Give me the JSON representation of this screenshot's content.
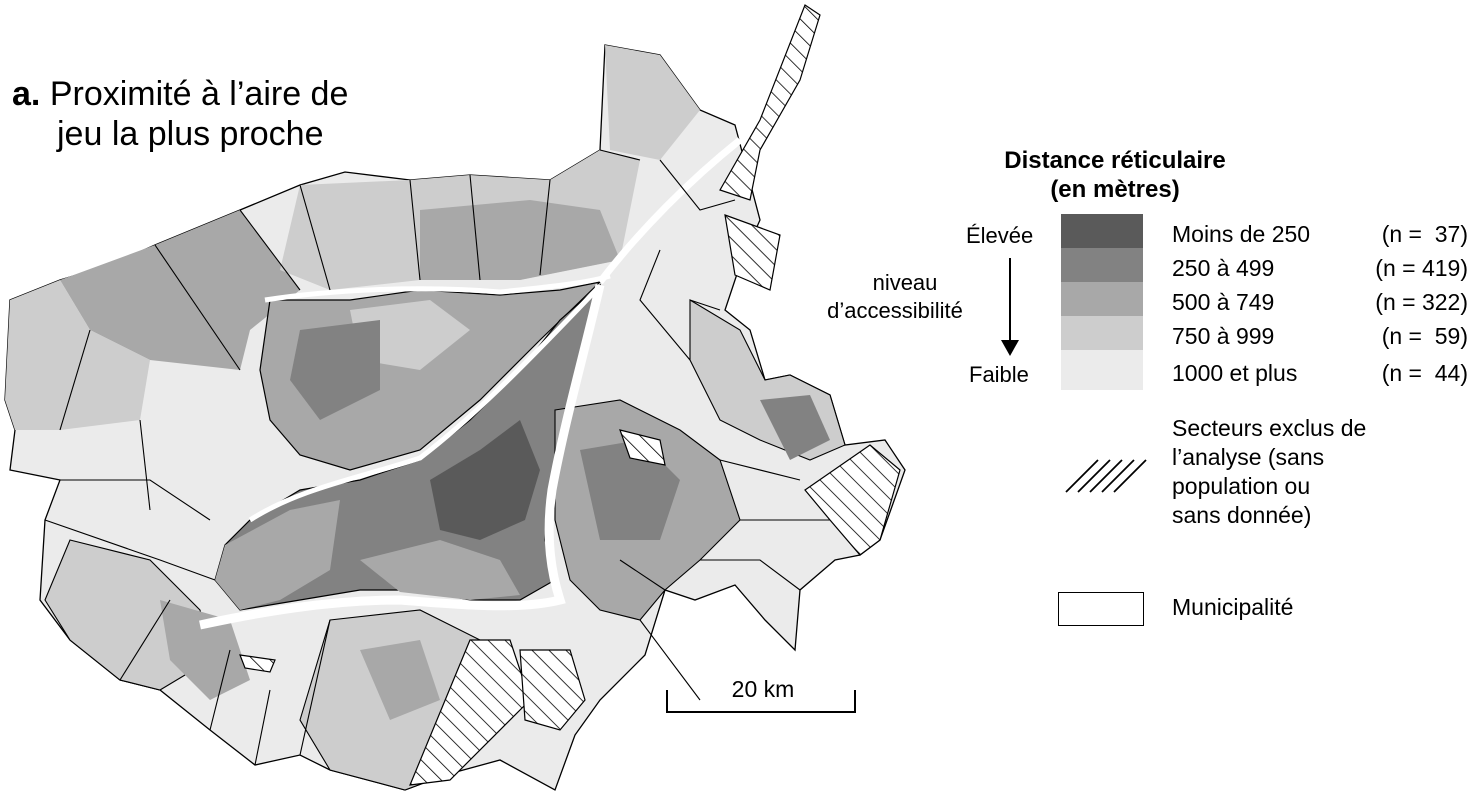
{
  "title": {
    "letter": "a.",
    "line1": "Proximité à l’aire de",
    "line2": "jeu la plus proche"
  },
  "legend": {
    "title_line1": "Distance réticulaire",
    "title_line2": "(en mètres)",
    "axis_high": "Élevée",
    "axis_mid_line1": "niveau",
    "axis_mid_line2": "d’accessibilité",
    "axis_low": "Faible",
    "classes": [
      {
        "label": "Moins de 250",
        "count": "(n =  37)",
        "color": "#5a5a5a"
      },
      {
        "label": "250 à 499",
        "count": "(n = 419)",
        "color": "#828282"
      },
      {
        "label": "500 à 749",
        "count": "(n = 322)",
        "color": "#a8a8a8"
      },
      {
        "label": "750 à 999",
        "count": "(n =  59)",
        "color": "#cdcdcd"
      },
      {
        "label": "1000 et plus",
        "count": "(n =  44)",
        "color": "#ebebeb"
      }
    ],
    "excluded_line1": "Secteurs exclus de",
    "excluded_line2": "l’analyse (sans",
    "excluded_line3": "population ou",
    "excluded_line4": "sans donnée)",
    "municipality": "Municipalité"
  },
  "scale_bar": {
    "label": "20 km"
  }
}
